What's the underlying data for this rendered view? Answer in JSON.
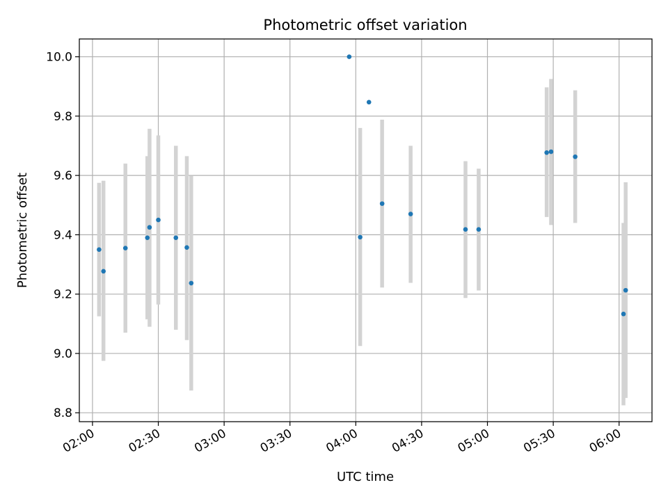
{
  "chart_data": {
    "type": "scatter",
    "title": "Photometric offset variation",
    "xlabel": "UTC time",
    "ylabel": "Photometric offset",
    "xlim": [
      "01:54",
      "06:15"
    ],
    "ylim": [
      8.77,
      10.06
    ],
    "xticks": [
      "02:00",
      "02:30",
      "03:00",
      "03:30",
      "04:00",
      "04:30",
      "05:00",
      "05:30",
      "06:00"
    ],
    "yticks": [
      "8.8",
      "9.0",
      "9.2",
      "9.4",
      "9.6",
      "9.8",
      "10.0"
    ],
    "grid": true,
    "marker_color": "#1f77b4",
    "errorbar_color": "#d3d3d3",
    "series": [
      {
        "points": [
          {
            "time": "02:03",
            "y": 9.35,
            "ylow": 9.125,
            "yhigh": 9.575
          },
          {
            "time": "02:05",
            "y": 9.277,
            "ylow": 8.975,
            "yhigh": 9.582
          },
          {
            "time": "02:15",
            "y": 9.355,
            "ylow": 9.07,
            "yhigh": 9.64
          },
          {
            "time": "02:25",
            "y": 9.39,
            "ylow": 9.115,
            "yhigh": 9.665
          },
          {
            "time": "02:26",
            "y": 9.425,
            "ylow": 9.09,
            "yhigh": 9.757
          },
          {
            "time": "02:30",
            "y": 9.45,
            "ylow": 9.165,
            "yhigh": 9.735
          },
          {
            "time": "02:38",
            "y": 9.39,
            "ylow": 9.08,
            "yhigh": 9.7
          },
          {
            "time": "02:43",
            "y": 9.357,
            "ylow": 9.045,
            "yhigh": 9.665
          },
          {
            "time": "02:45",
            "y": 9.237,
            "ylow": 8.875,
            "yhigh": 9.598
          },
          {
            "time": "03:57",
            "y": 10.0,
            "ylow": 10.0,
            "yhigh": 10.0
          },
          {
            "time": "04:02",
            "y": 9.392,
            "ylow": 9.025,
            "yhigh": 9.76
          },
          {
            "time": "04:06",
            "y": 9.847,
            "ylow": 9.847,
            "yhigh": 9.847
          },
          {
            "time": "04:12",
            "y": 9.505,
            "ylow": 9.222,
            "yhigh": 9.788
          },
          {
            "time": "04:25",
            "y": 9.47,
            "ylow": 9.238,
            "yhigh": 9.7
          },
          {
            "time": "04:50",
            "y": 9.418,
            "ylow": 9.187,
            "yhigh": 9.648
          },
          {
            "time": "04:56",
            "y": 9.418,
            "ylow": 9.212,
            "yhigh": 9.623
          },
          {
            "time": "05:27",
            "y": 9.677,
            "ylow": 9.46,
            "yhigh": 9.897
          },
          {
            "time": "05:29",
            "y": 9.68,
            "ylow": 9.433,
            "yhigh": 9.925
          },
          {
            "time": "05:40",
            "y": 9.663,
            "ylow": 9.44,
            "yhigh": 9.887
          },
          {
            "time": "06:02",
            "y": 9.133,
            "ylow": 8.825,
            "yhigh": 9.44
          },
          {
            "time": "06:03",
            "y": 9.213,
            "ylow": 8.85,
            "yhigh": 9.577
          }
        ]
      }
    ]
  }
}
